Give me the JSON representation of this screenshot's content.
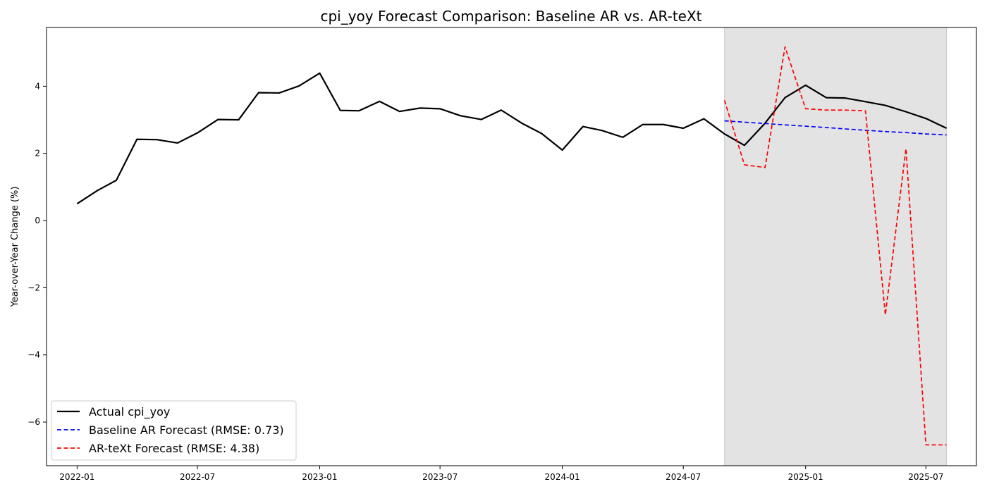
{
  "chart_data": {
    "type": "line",
    "title": "cpi_yoy Forecast Comparison: Baseline AR vs. AR-teXt",
    "xlabel": "",
    "ylabel": "Year-over-Year Change (%)",
    "x_tick_labels": [
      "2022-01",
      "2022-07",
      "2023-01",
      "2023-07",
      "2024-01",
      "2024-07",
      "2025-01",
      "2025-07"
    ],
    "x_ticks": [
      "2022-01-01",
      "2022-07-01",
      "2023-01-01",
      "2023-07-01",
      "2024-01-01",
      "2024-07-01",
      "2025-01-01",
      "2025-07-01"
    ],
    "xlim": [
      "2021-11-16",
      "2025-09-15"
    ],
    "y_ticks": [
      -6,
      -4,
      -2,
      0,
      2,
      4
    ],
    "y_tick_labels": [
      "−6",
      "−4",
      "−2",
      "0",
      "2",
      "4"
    ],
    "ylim": [
      -7.3,
      5.75
    ],
    "grid": false,
    "legend_position": "lower-left",
    "shaded_region": {
      "start": "2024-09-01",
      "end": "2025-08-01",
      "color": "#e3e3e3"
    },
    "series": [
      {
        "name": "Actual cpi_yoy",
        "color": "#000000",
        "style": "solid",
        "x": [
          "2022-01-01",
          "2022-02-01",
          "2022-03-01",
          "2022-04-01",
          "2022-05-01",
          "2022-06-01",
          "2022-07-01",
          "2022-08-01",
          "2022-09-01",
          "2022-10-01",
          "2022-11-01",
          "2022-12-01",
          "2023-01-01",
          "2023-02-01",
          "2023-03-01",
          "2023-04-01",
          "2023-05-01",
          "2023-06-01",
          "2023-07-01",
          "2023-08-01",
          "2023-09-01",
          "2023-10-01",
          "2023-11-01",
          "2023-12-01",
          "2024-01-01",
          "2024-02-01",
          "2024-03-01",
          "2024-04-01",
          "2024-05-01",
          "2024-06-01",
          "2024-07-01",
          "2024-08-01",
          "2024-09-01",
          "2024-10-01",
          "2024-11-01",
          "2024-12-01",
          "2025-01-01",
          "2025-02-01",
          "2025-03-01",
          "2025-04-01",
          "2025-05-01",
          "2025-06-01",
          "2025-07-01",
          "2025-08-01"
        ],
        "values": [
          0.5,
          0.9,
          1.2,
          2.42,
          2.41,
          2.31,
          2.61,
          3.01,
          3.0,
          3.81,
          3.8,
          4.01,
          4.39,
          3.28,
          3.27,
          3.55,
          3.25,
          3.35,
          3.33,
          3.12,
          3.01,
          3.29,
          2.9,
          2.59,
          2.1,
          2.8,
          2.68,
          2.48,
          2.86,
          2.86,
          2.75,
          3.03,
          2.58,
          2.24,
          2.9,
          3.66,
          4.03,
          3.66,
          3.65,
          3.54,
          3.43,
          3.24,
          3.04,
          2.75
        ]
      },
      {
        "name": "Baseline AR Forecast (RMSE: 0.73)",
        "color": "#0000ff",
        "style": "dashed",
        "x": [
          "2024-09-01",
          "2024-10-01",
          "2024-11-01",
          "2024-12-01",
          "2025-01-01",
          "2025-02-01",
          "2025-03-01",
          "2025-04-01",
          "2025-05-01",
          "2025-06-01",
          "2025-07-01",
          "2025-08-01"
        ],
        "values": [
          2.97,
          2.93,
          2.89,
          2.85,
          2.81,
          2.77,
          2.73,
          2.69,
          2.65,
          2.62,
          2.58,
          2.55
        ]
      },
      {
        "name": "AR-teXt Forecast (RMSE: 4.38)",
        "color": "#ff0000",
        "style": "dashed",
        "x": [
          "2024-09-01",
          "2024-10-01",
          "2024-11-01",
          "2024-12-01",
          "2025-01-01",
          "2025-02-01",
          "2025-03-01",
          "2025-04-01",
          "2025-05-01",
          "2025-06-01",
          "2025-07-01",
          "2025-08-01"
        ],
        "values": [
          3.58,
          1.66,
          1.58,
          5.17,
          3.33,
          3.29,
          3.29,
          3.27,
          -2.81,
          2.14,
          -6.68,
          -6.68
        ]
      }
    ]
  }
}
